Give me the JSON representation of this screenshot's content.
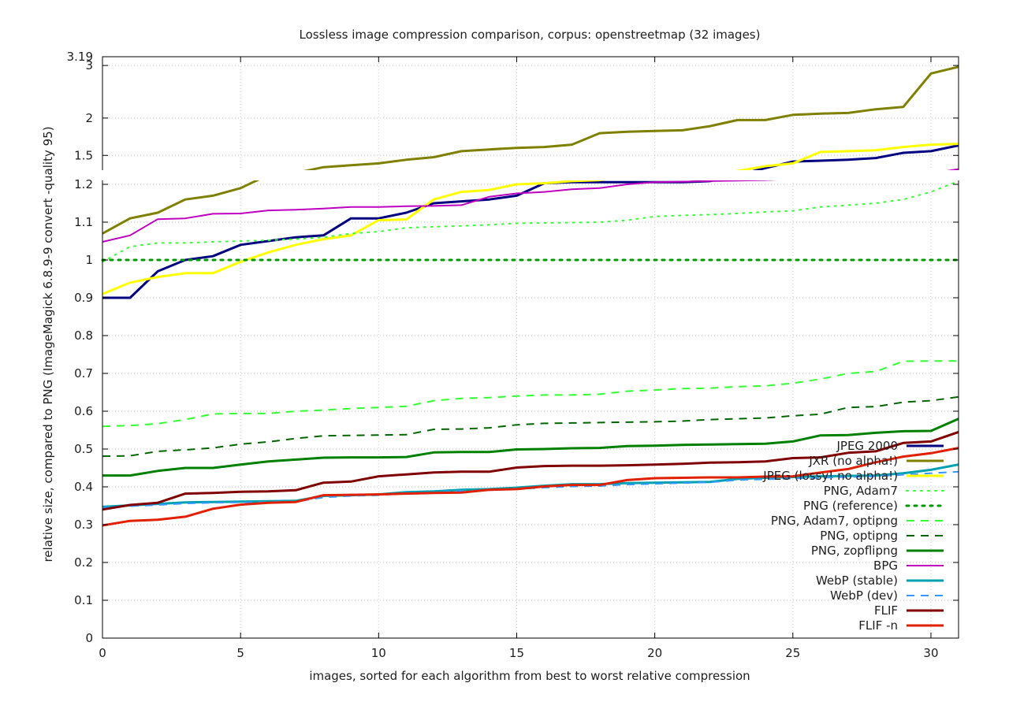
{
  "chart_data": {
    "type": "line",
    "title": "Lossless image compression comparison, corpus: openstreetmap (32 images)",
    "xlabel": "images, sorted for each algorithm from best to worst relative compression",
    "ylabel": "relative size, compared to PNG (ImageMagick 6.8.9-9 convert -quality 95)",
    "xlim": [
      0,
      31
    ],
    "ylim": [
      0,
      3.19
    ],
    "axis_break": {
      "lower_range": [
        0,
        1.2
      ],
      "upper_range": [
        1.2,
        3.19
      ]
    },
    "x_ticks": [
      0,
      5,
      10,
      15,
      20,
      25,
      30
    ],
    "y_ticks_lower": [
      0,
      0.1,
      0.2,
      0.3,
      0.4,
      0.5,
      0.6,
      0.7,
      0.8,
      0.9,
      1,
      1.1,
      1.2
    ],
    "y_ticks_upper": [
      1.5,
      2,
      3
    ],
    "y_tick_labels": [
      "0",
      "0.1",
      "0.2",
      "0.3",
      "0.4",
      "0.5",
      "0.6",
      "0.7",
      "0.8",
      "0.9",
      "1",
      "1.1",
      "1.2",
      "1.5",
      "2",
      "3"
    ],
    "x_tick_labels": [
      "0",
      "5",
      "10",
      "15",
      "20",
      "25",
      "30"
    ],
    "y_max_label": "3.19",
    "grid": true,
    "legend_position": "right",
    "series": [
      {
        "name": "JPEG 2000",
        "color": "#000080",
        "style": "solid",
        "width": 3,
        "values": [
          0.9,
          0.9,
          0.97,
          1.0,
          1.01,
          1.04,
          1.05,
          1.06,
          1.065,
          1.11,
          1.11,
          1.125,
          1.15,
          1.155,
          1.16,
          1.17,
          1.21,
          1.22,
          1.22,
          1.22,
          1.22,
          1.22,
          1.23,
          1.29,
          1.36,
          1.43,
          1.44,
          1.45,
          1.47,
          1.53,
          1.55,
          1.62
        ]
      },
      {
        "name": "JXR (no alpha!)",
        "color": "#808000",
        "style": "solid",
        "width": 3,
        "values": [
          1.07,
          1.11,
          1.125,
          1.16,
          1.17,
          1.19,
          1.29,
          1.31,
          1.37,
          1.39,
          1.41,
          1.45,
          1.48,
          1.55,
          1.57,
          1.59,
          1.6,
          1.63,
          1.78,
          1.8,
          1.81,
          1.82,
          1.88,
          1.97,
          1.97,
          2.05,
          2.07,
          2.08,
          2.14,
          2.18,
          2.82,
          2.97
        ]
      },
      {
        "name": "JPEG (lossy! no alpha!)",
        "color": "#ffff00",
        "style": "solid",
        "width": 3,
        "values": [
          0.91,
          0.94,
          0.955,
          0.965,
          0.965,
          0.995,
          1.02,
          1.04,
          1.055,
          1.065,
          1.105,
          1.107,
          1.16,
          1.18,
          1.185,
          1.2,
          1.21,
          1.23,
          1.24,
          1.28,
          1.28,
          1.29,
          1.3,
          1.33,
          1.38,
          1.41,
          1.54,
          1.55,
          1.56,
          1.6,
          1.63,
          1.64
        ]
      },
      {
        "name": "PNG, Adam7",
        "color": "#33ff33",
        "style": "dot",
        "width": 2,
        "values": [
          0.995,
          1.035,
          1.045,
          1.045,
          1.048,
          1.05,
          1.052,
          1.055,
          1.06,
          1.07,
          1.075,
          1.085,
          1.088,
          1.09,
          1.093,
          1.097,
          1.098,
          1.099,
          1.1,
          1.105,
          1.115,
          1.118,
          1.12,
          1.123,
          1.127,
          1.13,
          1.14,
          1.145,
          1.15,
          1.16,
          1.18,
          1.23
        ]
      },
      {
        "name": "PNG (reference)",
        "color": "#009900",
        "style": "dot",
        "width": 3,
        "values": [
          1,
          1,
          1,
          1,
          1,
          1,
          1,
          1,
          1,
          1,
          1,
          1,
          1,
          1,
          1,
          1,
          1,
          1,
          1,
          1,
          1,
          1,
          1,
          1,
          1,
          1,
          1,
          1,
          1,
          1,
          1,
          1
        ]
      },
      {
        "name": "PNG, Adam7, optipng",
        "color": "#33ff33",
        "style": "dash",
        "width": 2,
        "values": [
          0.56,
          0.562,
          0.567,
          0.578,
          0.593,
          0.594,
          0.594,
          0.6,
          0.603,
          0.607,
          0.61,
          0.613,
          0.628,
          0.634,
          0.636,
          0.64,
          0.643,
          0.643,
          0.645,
          0.653,
          0.656,
          0.66,
          0.661,
          0.665,
          0.667,
          0.674,
          0.685,
          0.7,
          0.705,
          0.732,
          0.733,
          0.733
        ]
      },
      {
        "name": "PNG, optipng",
        "color": "#006600",
        "style": "dash",
        "width": 2,
        "values": [
          0.481,
          0.482,
          0.494,
          0.498,
          0.503,
          0.513,
          0.519,
          0.528,
          0.535,
          0.536,
          0.537,
          0.538,
          0.552,
          0.553,
          0.556,
          0.564,
          0.568,
          0.569,
          0.57,
          0.571,
          0.572,
          0.574,
          0.578,
          0.58,
          0.582,
          0.588,
          0.592,
          0.61,
          0.612,
          0.624,
          0.628,
          0.638
        ]
      },
      {
        "name": "PNG, zopflipng",
        "color": "#008000",
        "style": "solid",
        "width": 3,
        "values": [
          0.43,
          0.43,
          0.442,
          0.45,
          0.45,
          0.459,
          0.467,
          0.472,
          0.477,
          0.478,
          0.478,
          0.479,
          0.491,
          0.492,
          0.492,
          0.499,
          0.5,
          0.502,
          0.503,
          0.508,
          0.509,
          0.511,
          0.512,
          0.513,
          0.514,
          0.52,
          0.536,
          0.537,
          0.543,
          0.547,
          0.548,
          0.58
        ]
      },
      {
        "name": "BPG",
        "color": "#c000c0",
        "style": "solid",
        "width": 2,
        "values": [
          1.048,
          1.065,
          1.108,
          1.11,
          1.122,
          1.123,
          1.131,
          1.133,
          1.136,
          1.14,
          1.14,
          1.142,
          1.143,
          1.145,
          1.167,
          1.176,
          1.18,
          1.187,
          1.19,
          1.2,
          1.22,
          1.225,
          1.23,
          1.235,
          1.24,
          1.25,
          1.26,
          1.275,
          1.28,
          1.3,
          1.305,
          1.35
        ]
      },
      {
        "name": "WebP (stable)",
        "color": "#00a0b0",
        "style": "solid",
        "width": 3,
        "values": [
          0.347,
          0.351,
          0.355,
          0.359,
          0.36,
          0.361,
          0.362,
          0.363,
          0.376,
          0.378,
          0.38,
          0.386,
          0.388,
          0.392,
          0.394,
          0.398,
          0.403,
          0.407,
          0.407,
          0.41,
          0.411,
          0.412,
          0.413,
          0.421,
          0.424,
          0.426,
          0.428,
          0.429,
          0.43,
          0.436,
          0.445,
          0.459
        ]
      },
      {
        "name": "WebP (dev)",
        "color": "#3399ff",
        "style": "dash",
        "width": 2,
        "values": [
          0.345,
          0.349,
          0.352,
          0.356,
          0.358,
          0.359,
          0.36,
          0.361,
          0.372,
          0.376,
          0.378,
          0.383,
          0.385,
          0.389,
          0.391,
          0.394,
          0.398,
          0.401,
          0.402,
          0.406,
          0.408,
          0.41,
          0.412,
          0.418,
          0.42,
          0.422,
          0.424,
          0.426,
          0.428,
          0.432,
          0.436,
          0.44
        ]
      },
      {
        "name": "FLIF",
        "color": "#800000",
        "style": "solid",
        "width": 3,
        "values": [
          0.34,
          0.352,
          0.358,
          0.382,
          0.384,
          0.387,
          0.388,
          0.391,
          0.411,
          0.414,
          0.428,
          0.433,
          0.438,
          0.44,
          0.44,
          0.451,
          0.455,
          0.456,
          0.456,
          0.457,
          0.459,
          0.461,
          0.464,
          0.465,
          0.467,
          0.476,
          0.478,
          0.49,
          0.494,
          0.516,
          0.52,
          0.545
        ]
      },
      {
        "name": "FLIF -n",
        "color": "#e02000",
        "style": "solid",
        "width": 3,
        "values": [
          0.298,
          0.31,
          0.313,
          0.321,
          0.342,
          0.353,
          0.358,
          0.36,
          0.378,
          0.379,
          0.38,
          0.382,
          0.384,
          0.385,
          0.392,
          0.394,
          0.401,
          0.405,
          0.405,
          0.418,
          0.423,
          0.424,
          0.425,
          0.425,
          0.427,
          0.428,
          0.438,
          0.447,
          0.465,
          0.48,
          0.489,
          0.503
        ]
      }
    ]
  }
}
